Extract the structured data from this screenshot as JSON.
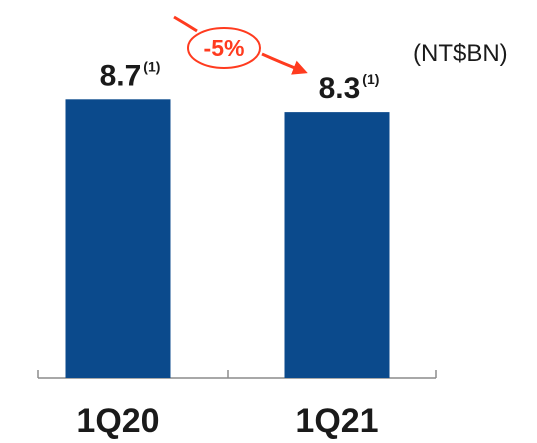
{
  "unit_label": "(NT$BN)",
  "change_label": "-5%",
  "colors": {
    "bar": "#0b4a8c",
    "accent": "#ff3b1f",
    "axis": "#8c8c8c",
    "text": "#1a1a1a"
  },
  "chart_data": {
    "type": "bar",
    "categories": [
      "1Q20",
      "1Q21"
    ],
    "values": [
      8.7,
      8.3
    ],
    "data_labels": [
      "8.7",
      "8.3"
    ],
    "footnote_marker": "(1)",
    "title": "",
    "xlabel": "",
    "ylabel": "",
    "ylim": [
      0,
      11.8
    ]
  }
}
